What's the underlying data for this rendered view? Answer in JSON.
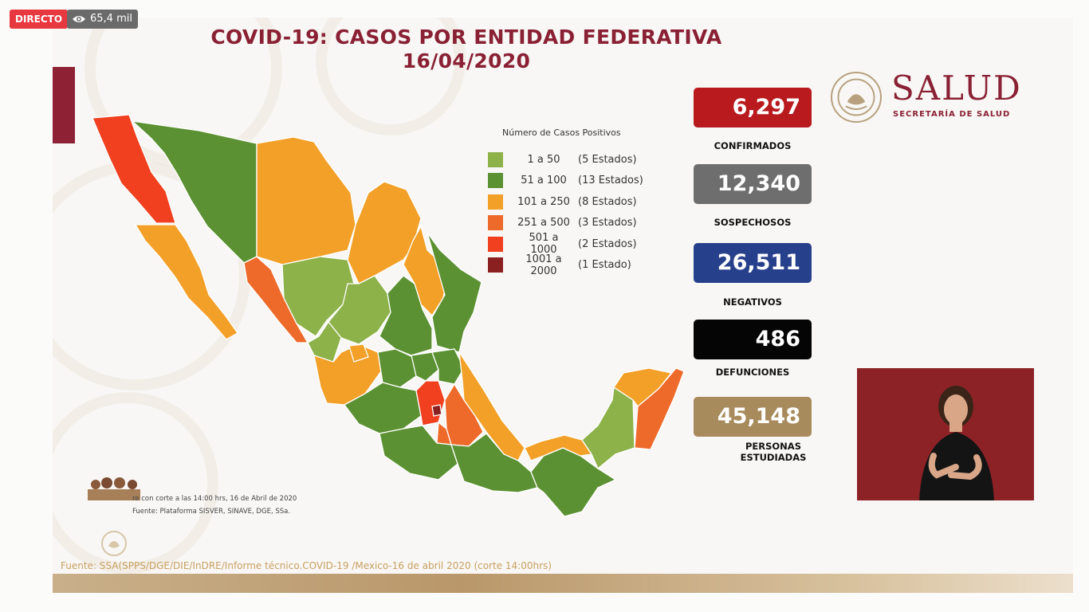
{
  "live": {
    "label": "DIRECTO",
    "views": "65,4 mil"
  },
  "title": {
    "line1": "COVID-19: CASOS POR ENTIDAD FEDERATIVA",
    "line2": "16/04/2020"
  },
  "logo": {
    "name": "SALUD",
    "subtitle": "SECRETARÍA DE SALUD"
  },
  "stats": [
    {
      "value": "6,297",
      "label": "CONFIRMADOS",
      "color": "#b81a1e"
    },
    {
      "value": "12,340",
      "label": "SOSPECHOSOS",
      "color": "#6e6e6e"
    },
    {
      "value": "26,511",
      "label": "NEGATIVOS",
      "color": "#27408b"
    },
    {
      "value": "486",
      "label": "DEFUNCIONES",
      "color": "#050505"
    },
    {
      "value": "45,148",
      "label": "PERSONAS ESTUDIADAS",
      "color": "#a88b5c"
    }
  ],
  "legend": {
    "title": "Número de Casos Positivos",
    "items": [
      {
        "range": "1 a 50",
        "count": "(5 Estados)",
        "color": "#8db24a"
      },
      {
        "range": "51 a 100",
        "count": "(13 Estados)",
        "color": "#5b9132"
      },
      {
        "range": "101 a 250",
        "count": "(8 Estados)",
        "color": "#f3a028"
      },
      {
        "range": "251 a 500",
        "count": "(3 Estados)",
        "color": "#ee6a2a"
      },
      {
        "range": "501 a 1000",
        "count": "(2 Estados)",
        "color": "#f0401f"
      },
      {
        "range": "1001 a 2000",
        "count": "(1 Estado)",
        "color": "#8b2020"
      }
    ]
  },
  "notes": {
    "cut": "re con corte a las 14:00 hrs, 16 de Abril de 2020",
    "source_small": "Fuente: Plataforma SISVER, SINAVE, DGE, SSa.",
    "footer": "Fuente: SSA(SPPS/DGE/DIE/InDRE/Informe técnico.COVID-19 /Mexico-16 de abril 2020 (corte 14:00hrs)"
  }
}
